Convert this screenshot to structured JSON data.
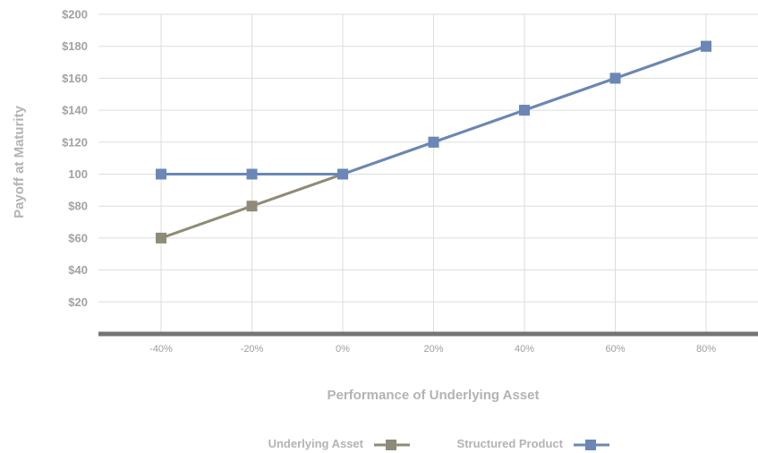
{
  "chart_data": {
    "type": "line",
    "title": "",
    "xlabel": "Performance of Underlying Asset",
    "ylabel": "Payoff at Maturity",
    "categories": [
      "-40%",
      "-20%",
      "0%",
      "20%",
      "40%",
      "60%",
      "80%"
    ],
    "y_ticks": [
      "$20",
      "$40",
      "$60",
      "$80",
      "100",
      "$120",
      "$140",
      "$160",
      "$180",
      "$200"
    ],
    "ylim": [
      0,
      200
    ],
    "grid": true,
    "legend_position": "bottom-center",
    "series": [
      {
        "name": "Underlying Asset",
        "color": "#8f8b78",
        "values": [
          60,
          80,
          100,
          120,
          140,
          160,
          180
        ]
      },
      {
        "name": "Structured Product",
        "color": "#6a87b6",
        "values": [
          100,
          100,
          100,
          120,
          140,
          160,
          180
        ]
      }
    ]
  }
}
